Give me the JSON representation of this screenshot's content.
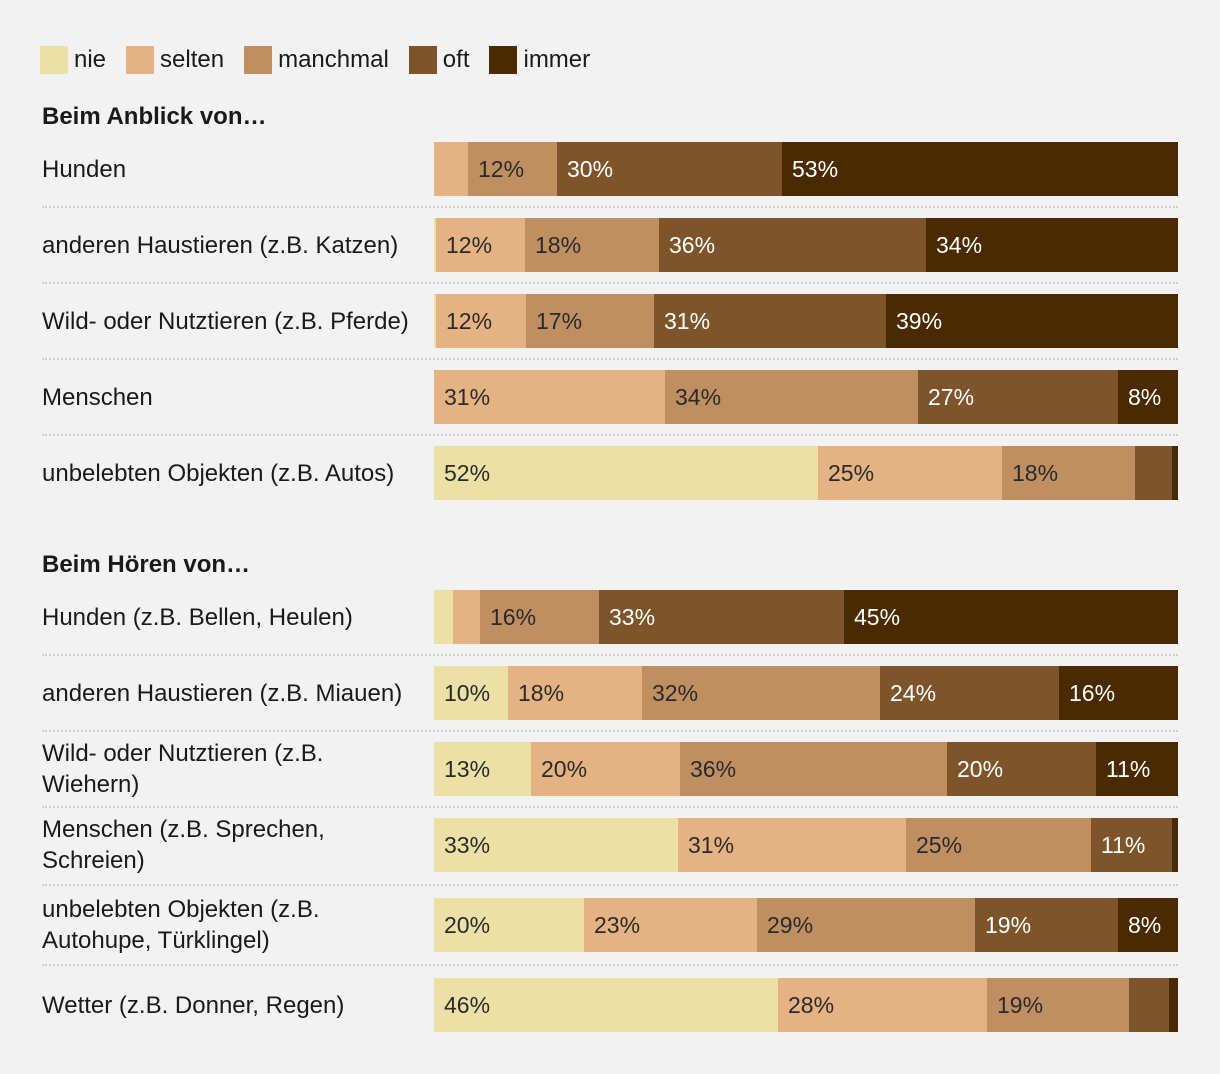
{
  "legend": [
    {
      "key": "nie",
      "label": "nie",
      "color": "#ede0a6"
    },
    {
      "key": "selten",
      "label": "selten",
      "color": "#e5b383"
    },
    {
      "key": "manchmal",
      "label": "manchmal",
      "color": "#bf8f62"
    },
    {
      "key": "oft",
      "label": "oft",
      "color": "#7e552b"
    },
    {
      "key": "immer",
      "label": "immer",
      "color": "#4a2a00"
    }
  ],
  "chart_data": {
    "type": "bar",
    "orientation": "horizontal",
    "stacked": true,
    "unit": "%",
    "legend_position": "top-left",
    "series": [
      "nie",
      "selten",
      "manchmal",
      "oft",
      "immer"
    ],
    "groups": [
      {
        "title": "Beim Anblick von…",
        "rows": [
          {
            "label": "Hunden",
            "values": [
              0,
              4.5,
              12,
              30,
              53
            ],
            "labels": [
              "",
              "",
              "12%",
              "30%",
              "53%"
            ]
          },
          {
            "label": "anderen Haustieren (z.B. Katzen)",
            "values": [
              0.3,
              12,
              18,
              36,
              34
            ],
            "labels": [
              "",
              "12%",
              "18%",
              "36%",
              "34%"
            ]
          },
          {
            "label": "Wild- oder Nutztieren (z.B. Pferde)",
            "values": [
              0.3,
              12,
              17,
              31,
              39
            ],
            "labels": [
              "",
              "12%",
              "17%",
              "31%",
              "39%"
            ]
          },
          {
            "label": "Menschen",
            "values": [
              0,
              31,
              34,
              27,
              8
            ],
            "labels": [
              "",
              "31%",
              "34%",
              "27%",
              "8%"
            ]
          },
          {
            "label": "unbelebten Objekten (z.B. Autos)",
            "values": [
              52,
              25,
              18,
              5,
              0.8
            ],
            "labels": [
              "52%",
              "25%",
              "18%",
              "",
              ""
            ]
          }
        ]
      },
      {
        "title": "Beim Hören von…",
        "rows": [
          {
            "label": "Hunden (z.B. Bellen, Heulen)",
            "values": [
              2.5,
              3.7,
              16,
              33,
              45
            ],
            "labels": [
              "",
              "",
              "16%",
              "33%",
              "45%"
            ]
          },
          {
            "label": "anderen Haustieren (z.B. Miauen)",
            "values": [
              10,
              18,
              32,
              24,
              16
            ],
            "labels": [
              "10%",
              "18%",
              "32%",
              "24%",
              "16%"
            ]
          },
          {
            "label": "Wild- oder Nutztieren (z.B. Wiehern)",
            "values": [
              13,
              20,
              36,
              20,
              11
            ],
            "labels": [
              "13%",
              "20%",
              "36%",
              "20%",
              "11%"
            ]
          },
          {
            "label": "Menschen (z.B. Sprechen, Schreien)",
            "values": [
              33,
              31,
              25,
              11,
              0.8
            ],
            "labels": [
              "33%",
              "31%",
              "25%",
              "11%",
              ""
            ]
          },
          {
            "label": "unbelebten Objekten (z.B. Autohupe, Türklingel)",
            "values": [
              20,
              23,
              29,
              19,
              8
            ],
            "labels": [
              "20%",
              "23%",
              "29%",
              "19%",
              "8%"
            ]
          },
          {
            "label": "Wetter (z.B. Donner, Regen)",
            "values": [
              46,
              28,
              19,
              5.4,
              1.2
            ],
            "labels": [
              "46%",
              "28%",
              "19%",
              "",
              ""
            ]
          }
        ]
      }
    ]
  }
}
